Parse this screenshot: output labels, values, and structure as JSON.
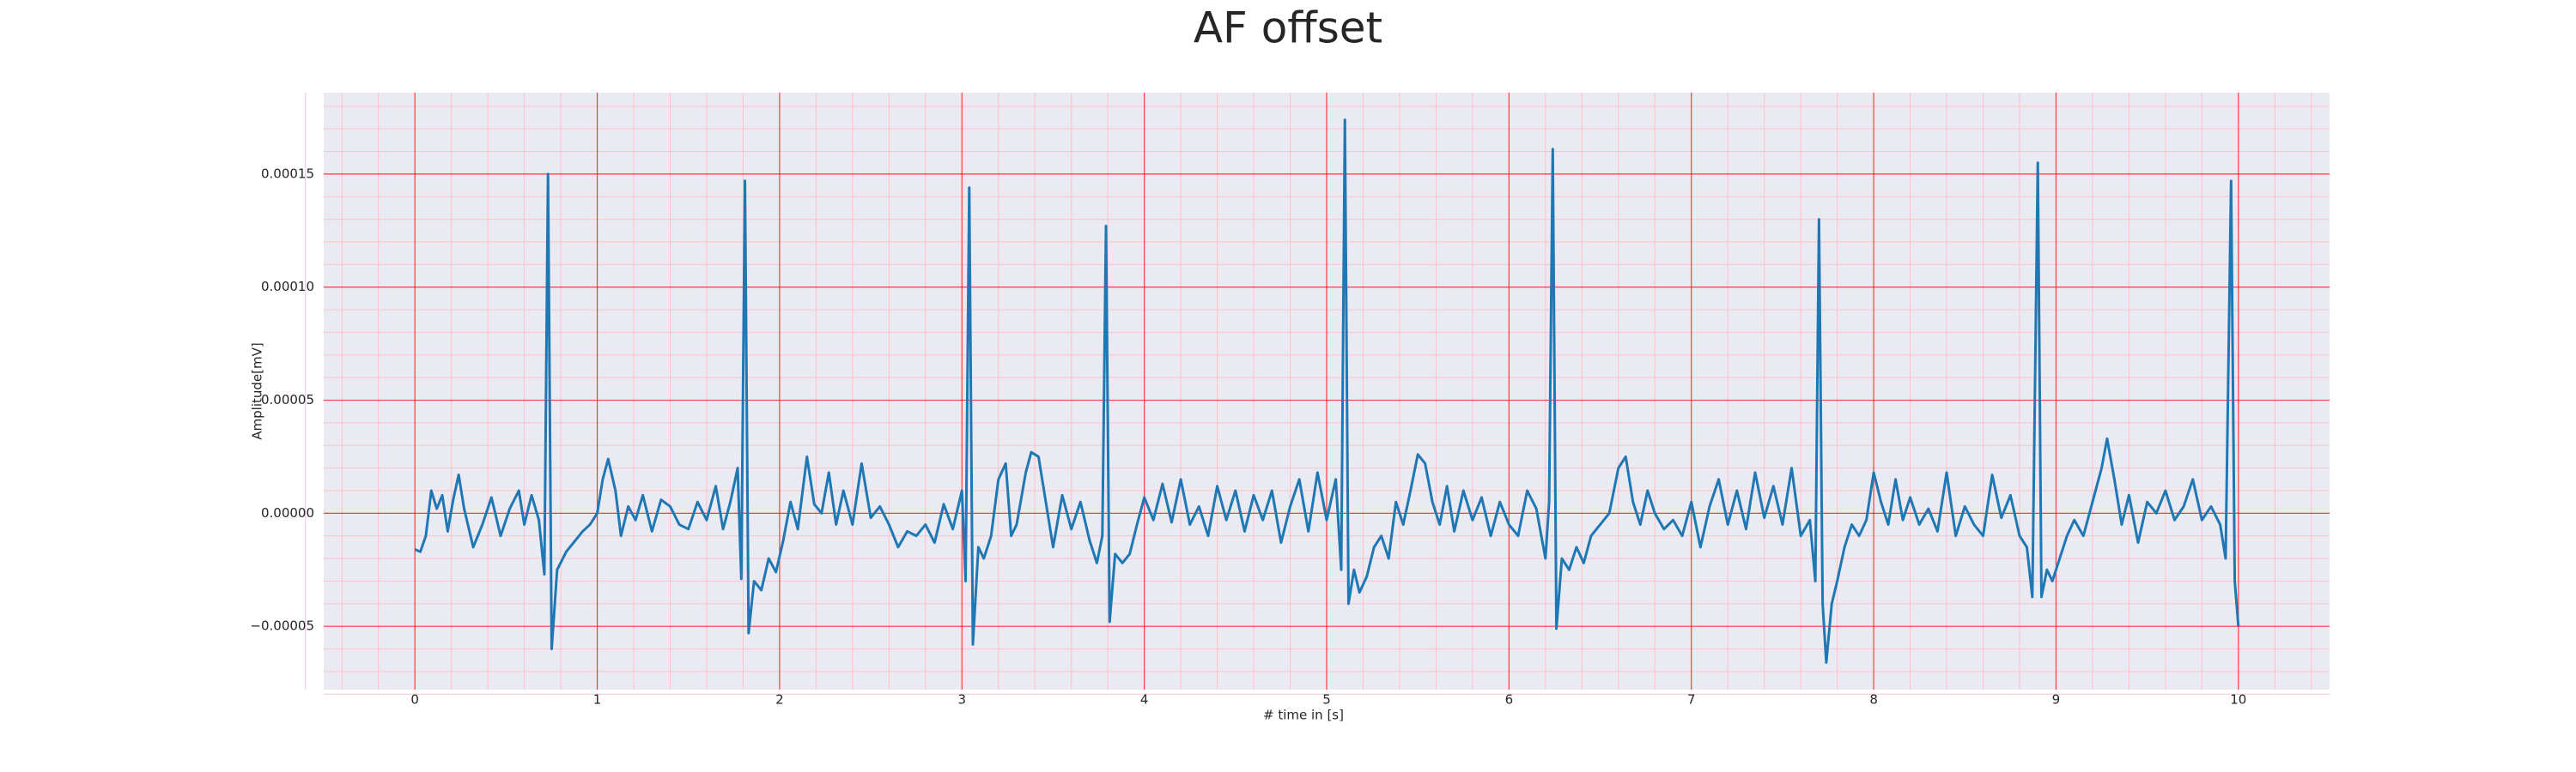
{
  "chart_data": {
    "type": "line",
    "title": "AF offset",
    "xlabel": "# time in [s]",
    "ylabel": "Amplitude[mV]",
    "color": "#1f77b4",
    "grid": true,
    "grid_color": "#ff0000",
    "minor_grid": true,
    "minor_grid_color": "#ffc0cb",
    "xlim": [
      -0.5,
      10.5
    ],
    "xticks": [
      0,
      1,
      2,
      3,
      4,
      5,
      6,
      7,
      8,
      9,
      10
    ],
    "ylim": [
      -7.8e-05,
      0.000186
    ],
    "yticks": [
      {
        "value": -5e-05,
        "label": "−0.00005"
      },
      {
        "value": 0,
        "label": "0.00000"
      },
      {
        "value": 5e-05,
        "label": "0.00005"
      },
      {
        "value": 0.0001,
        "label": "0.00010"
      },
      {
        "value": 0.00015,
        "label": "0.00015"
      }
    ],
    "x": [
      0,
      0.03,
      0.06,
      0.09,
      0.12,
      0.15,
      0.18,
      0.21,
      0.24,
      0.27,
      0.32,
      0.37,
      0.42,
      0.47,
      0.52,
      0.57,
      0.6,
      0.64,
      0.68,
      0.71,
      0.73,
      0.75,
      0.78,
      0.83,
      0.88,
      0.92,
      0.96,
      1.0,
      1.03,
      1.06,
      1.1,
      1.13,
      1.17,
      1.21,
      1.25,
      1.3,
      1.35,
      1.4,
      1.45,
      1.5,
      1.55,
      1.6,
      1.65,
      1.69,
      1.73,
      1.77,
      1.79,
      1.81,
      1.83,
      1.86,
      1.9,
      1.94,
      1.98,
      2.02,
      2.06,
      2.1,
      2.15,
      2.19,
      2.23,
      2.27,
      2.31,
      2.35,
      2.4,
      2.45,
      2.5,
      2.55,
      2.6,
      2.65,
      2.7,
      2.75,
      2.8,
      2.85,
      2.9,
      2.95,
      3.0,
      3.02,
      3.04,
      3.06,
      3.09,
      3.12,
      3.16,
      3.2,
      3.24,
      3.27,
      3.3,
      3.35,
      3.38,
      3.42,
      3.46,
      3.5,
      3.55,
      3.6,
      3.65,
      3.7,
      3.74,
      3.77,
      3.79,
      3.81,
      3.84,
      3.88,
      3.92,
      3.96,
      4.0,
      4.05,
      4.1,
      4.15,
      4.2,
      4.25,
      4.3,
      4.35,
      4.4,
      4.45,
      4.5,
      4.55,
      4.6,
      4.65,
      4.7,
      4.75,
      4.8,
      4.85,
      4.9,
      4.95,
      5.0,
      5.05,
      5.08,
      5.1,
      5.12,
      5.15,
      5.18,
      5.22,
      5.26,
      5.3,
      5.34,
      5.38,
      5.42,
      5.46,
      5.5,
      5.54,
      5.58,
      5.62,
      5.66,
      5.7,
      5.75,
      5.8,
      5.85,
      5.9,
      5.95,
      6.0,
      6.05,
      6.1,
      6.15,
      6.2,
      6.22,
      6.24,
      6.26,
      6.29,
      6.33,
      6.37,
      6.41,
      6.45,
      6.5,
      6.55,
      6.6,
      6.64,
      6.68,
      6.72,
      6.76,
      6.8,
      6.85,
      6.9,
      6.95,
      7.0,
      7.05,
      7.1,
      7.15,
      7.2,
      7.25,
      7.3,
      7.35,
      7.4,
      7.45,
      7.5,
      7.55,
      7.6,
      7.65,
      7.68,
      7.7,
      7.72,
      7.74,
      7.77,
      7.8,
      7.84,
      7.88,
      7.92,
      7.96,
      8.0,
      8.04,
      8.08,
      8.12,
      8.16,
      8.2,
      8.25,
      8.3,
      8.35,
      8.4,
      8.45,
      8.5,
      8.55,
      8.6,
      8.65,
      8.7,
      8.75,
      8.8,
      8.84,
      8.87,
      8.9,
      8.92,
      8.95,
      8.98,
      9.02,
      9.06,
      9.1,
      9.15,
      9.2,
      9.25,
      9.28,
      9.32,
      9.36,
      9.4,
      9.45,
      9.5,
      9.55,
      9.6,
      9.65,
      9.7,
      9.75,
      9.8,
      9.85,
      9.9,
      9.93,
      9.96,
      9.98,
      10.0
    ],
    "values": [
      -1.6e-05,
      -1.7e-05,
      -1e-05,
      1e-05,
      2e-06,
      8e-06,
      -8e-06,
      6e-06,
      1.7e-05,
      2e-06,
      -1.5e-05,
      -5e-06,
      7e-06,
      -1e-05,
      2e-06,
      1e-05,
      -5e-06,
      8e-06,
      -3e-06,
      -2.7e-05,
      0.00015,
      -6e-05,
      -2.5e-05,
      -1.7e-05,
      -1.2e-05,
      -8e-06,
      -5e-06,
      0,
      1.5e-05,
      2.4e-05,
      1e-05,
      -1e-05,
      3e-06,
      -3e-06,
      8e-06,
      -8e-06,
      6e-06,
      3e-06,
      -5e-06,
      -7e-06,
      5e-06,
      -3e-06,
      1.2e-05,
      -7e-06,
      5e-06,
      2e-05,
      -2.9e-05,
      0.000147,
      -5.3e-05,
      -3e-05,
      -3.4e-05,
      -2e-05,
      -2.6e-05,
      -1.2e-05,
      5e-06,
      -7e-06,
      2.5e-05,
      4e-06,
      0,
      1.8e-05,
      -5e-06,
      1e-05,
      -5e-06,
      2.2e-05,
      -2e-06,
      3e-06,
      -5e-06,
      -1.5e-05,
      -8e-06,
      -1e-05,
      -5e-06,
      -1.3e-05,
      4e-06,
      -7e-06,
      1e-05,
      -3e-05,
      0.000144,
      -5.8e-05,
      -1.5e-05,
      -2e-05,
      -1e-05,
      1.5e-05,
      2.2e-05,
      -1e-05,
      -5e-06,
      1.8e-05,
      2.7e-05,
      2.5e-05,
      5e-06,
      -1.5e-05,
      8e-06,
      -7e-06,
      5e-06,
      -1.2e-05,
      -2.2e-05,
      -1e-05,
      0.000127,
      -4.8e-05,
      -1.8e-05,
      -2.2e-05,
      -1.8e-05,
      -5e-06,
      7e-06,
      -3e-06,
      1.3e-05,
      -4e-06,
      1.5e-05,
      -5e-06,
      3e-06,
      -1e-05,
      1.2e-05,
      -3e-06,
      1e-05,
      -8e-06,
      8e-06,
      -3e-06,
      1e-05,
      -1.3e-05,
      3e-06,
      1.5e-05,
      -8e-06,
      1.8e-05,
      -3e-06,
      1.5e-05,
      -2.5e-05,
      0.000174,
      -4e-05,
      -2.5e-05,
      -3.5e-05,
      -2.8e-05,
      -1.5e-05,
      -1e-05,
      -2e-05,
      5e-06,
      -5e-06,
      1e-05,
      2.6e-05,
      2.2e-05,
      5e-06,
      -5e-06,
      1.2e-05,
      -8e-06,
      1e-05,
      -3e-06,
      7e-06,
      -1e-05,
      5e-06,
      -5e-06,
      -1e-05,
      1e-05,
      2e-06,
      -2e-05,
      5e-06,
      0.000161,
      -5.1e-05,
      -2e-05,
      -2.5e-05,
      -1.5e-05,
      -2.2e-05,
      -1e-05,
      -5e-06,
      0,
      2e-05,
      2.5e-05,
      5e-06,
      -5e-06,
      1e-05,
      0,
      -7e-06,
      -3e-06,
      -1e-05,
      5e-06,
      -1.5e-05,
      3e-06,
      1.5e-05,
      -5e-06,
      1e-05,
      -7e-06,
      1.8e-05,
      -2e-06,
      1.2e-05,
      -5e-06,
      2e-05,
      -1e-05,
      -3e-06,
      -3e-05,
      0.00013,
      -4e-05,
      -6.6e-05,
      -4e-05,
      -3e-05,
      -1.5e-05,
      -5e-06,
      -1e-05,
      -3e-06,
      1.8e-05,
      5e-06,
      -5e-06,
      1.5e-05,
      -3e-06,
      7e-06,
      -5e-06,
      2e-06,
      -8e-06,
      1.8e-05,
      -1e-05,
      3e-06,
      -5e-06,
      -1e-05,
      1.7e-05,
      -2e-06,
      8e-06,
      -1e-05,
      -1.5e-05,
      -3.7e-05,
      0.000155,
      -3.7e-05,
      -2.5e-05,
      -3e-05,
      -2e-05,
      -1e-05,
      -3e-06,
      -1e-05,
      5e-06,
      2e-05,
      3.3e-05,
      1.5e-05,
      -5e-06,
      8e-06,
      -1.3e-05,
      5e-06,
      0,
      1e-05,
      -3e-06,
      3e-06,
      1.5e-05,
      -3e-06,
      3e-06,
      -5e-06,
      -2e-05,
      0.000147,
      -3e-05,
      -5e-05
    ]
  }
}
